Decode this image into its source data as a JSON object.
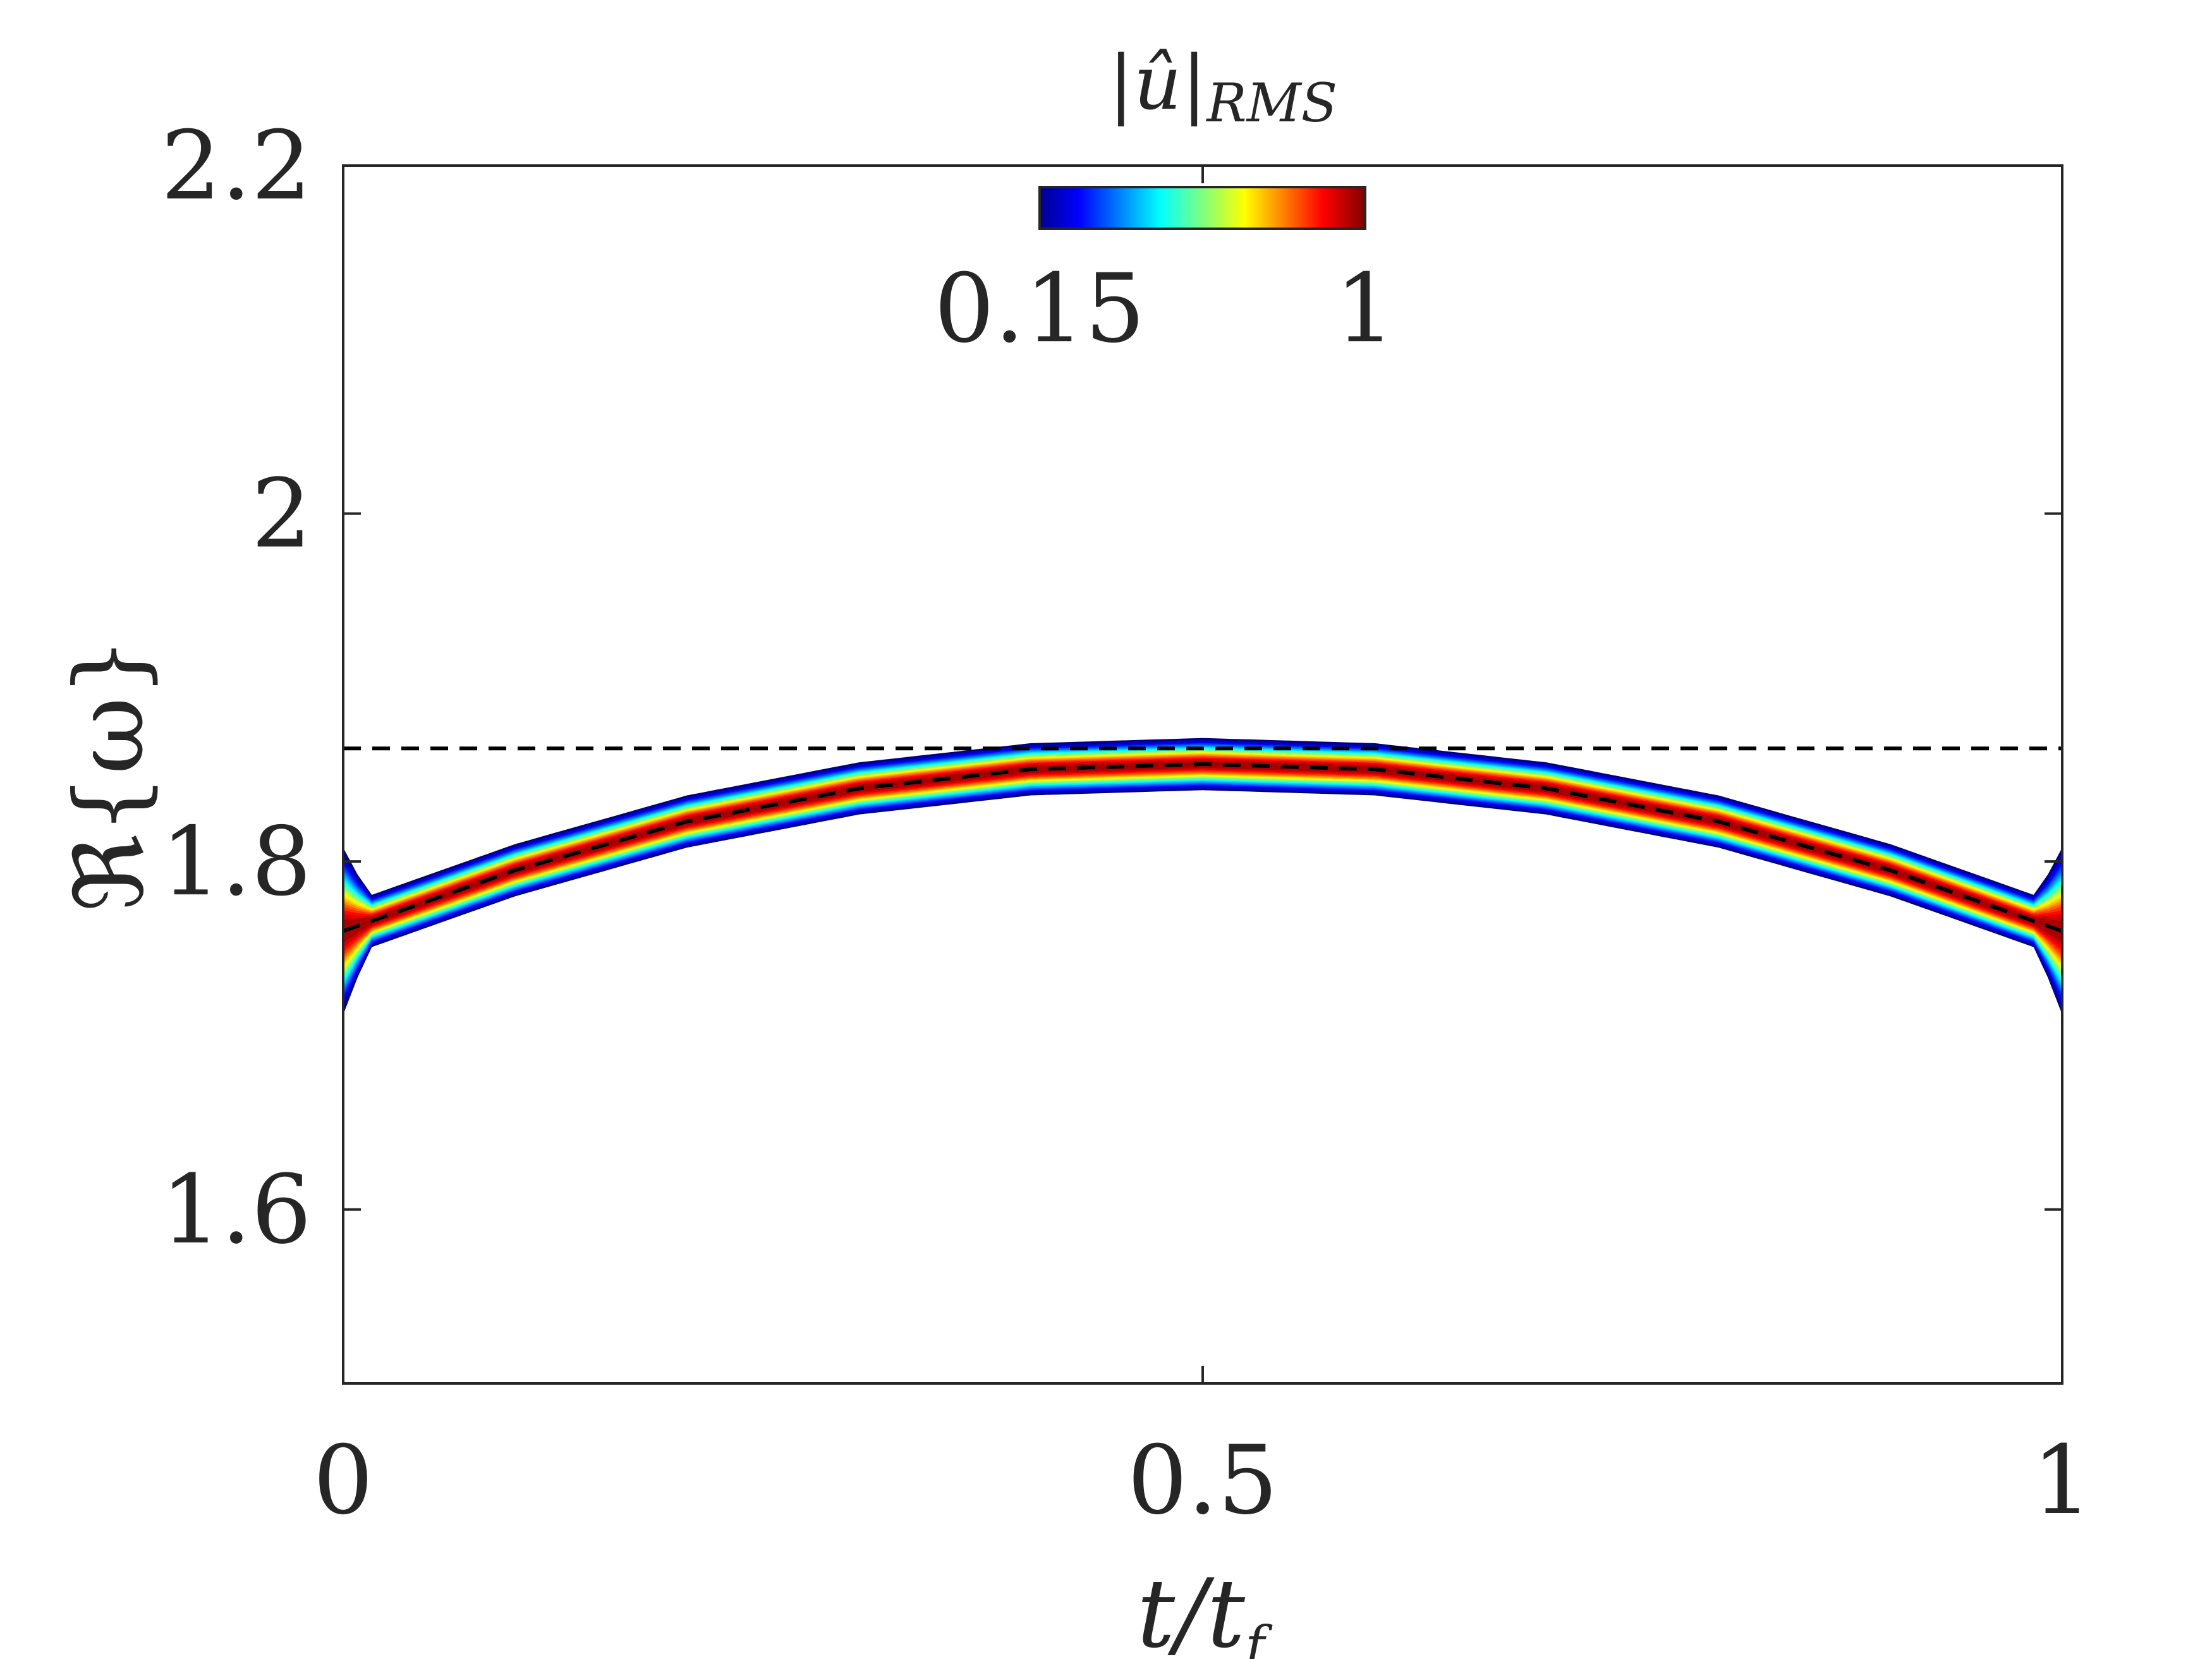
{
  "chart_data": {
    "type": "heatmap",
    "xlabel": "t/t_f",
    "xlabel_main": "t/t",
    "xlabel_sub": "f",
    "ylabel": "ℜ{ω}",
    "xlim": [
      0,
      1
    ],
    "ylim": [
      1.5,
      2.2
    ],
    "x_ticks": [
      0,
      0.5,
      1
    ],
    "x_tick_labels": [
      "0",
      "0.5",
      "1"
    ],
    "y_ticks": [
      1.6,
      1.8,
      2.0,
      2.2
    ],
    "y_tick_labels": [
      "1.6",
      "1.8",
      "2",
      "2.2"
    ],
    "grid": false,
    "colorbar": {
      "label": "|û|_RMS",
      "label_main": "|û|",
      "label_sub": "RMS",
      "colormap": "jet",
      "range": [
        0.15,
        1
      ],
      "tick_labels": [
        "0.15",
        "1"
      ],
      "placement": "top-center"
    },
    "ridge": {
      "description": "peak of |û|_RMS follows the instantaneous frequency",
      "x": [
        0,
        0.1,
        0.2,
        0.3,
        0.4,
        0.5,
        0.6,
        0.7,
        0.8,
        0.9,
        1.0
      ],
      "y": [
        1.76,
        1.795,
        1.823,
        1.842,
        1.853,
        1.856,
        1.853,
        1.842,
        1.823,
        1.795,
        1.76
      ],
      "half_width_at_cutoff": 0.015,
      "edge_flare_ymin": 1.71,
      "edge_flare_ymax": 1.81
    },
    "series": [
      {
        "style": "dashed",
        "x": [
          0,
          0.1,
          0.2,
          0.3,
          0.4,
          0.5,
          0.6,
          0.7,
          0.8,
          0.9,
          1.0
        ],
        "y": [
          1.76,
          1.795,
          1.823,
          1.842,
          1.853,
          1.856,
          1.853,
          1.842,
          1.823,
          1.795,
          1.76
        ]
      },
      {
        "style": "dashed",
        "x": [
          0,
          1
        ],
        "y": [
          1.865,
          1.865
        ]
      }
    ],
    "colors": {
      "axes": "#262626",
      "dashed_lines": "#000000"
    }
  }
}
